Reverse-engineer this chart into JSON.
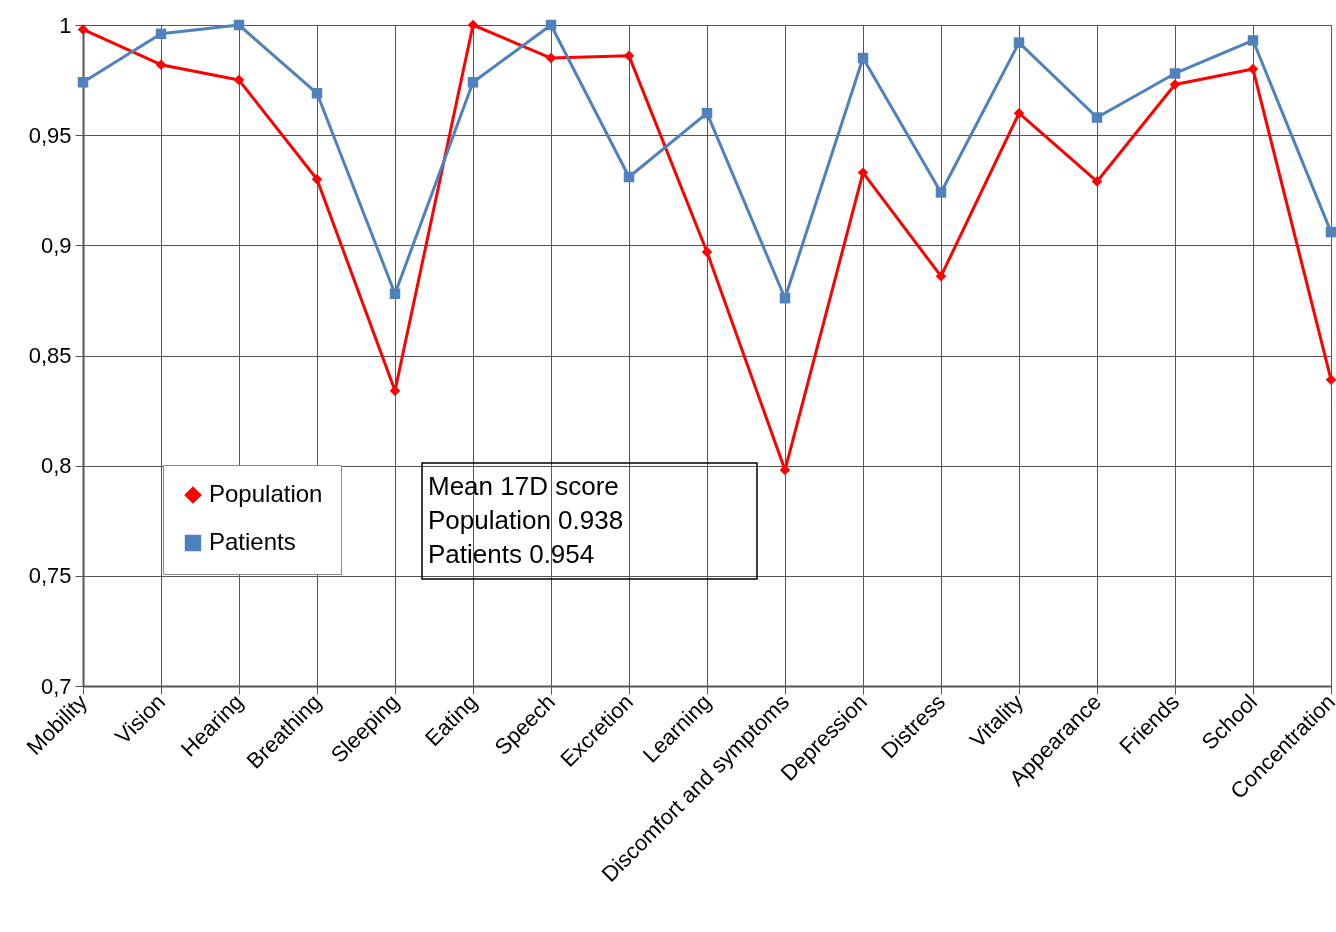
{
  "chart_data": {
    "type": "line",
    "categories": [
      "Mobility",
      "Vision",
      "Hearing",
      "Breathing",
      "Sleeping",
      "Eating",
      "Speech",
      "Excretion",
      "Learning",
      "Discomfort and symptoms",
      "Depression",
      "Distress",
      "Vitality",
      "Appearance",
      "Friends",
      "School",
      "Concentration"
    ],
    "series": [
      {
        "name": "Population",
        "color": "#ff0000",
        "marker": "diamond",
        "values": [
          0.998,
          0.982,
          0.975,
          0.93,
          0.834,
          1.0,
          0.985,
          0.986,
          0.897,
          0.798,
          0.933,
          0.886,
          0.96,
          0.929,
          0.973,
          0.98,
          0.839
        ]
      },
      {
        "name": "Patients",
        "color": "#4f81bd",
        "marker": "square",
        "values": [
          0.974,
          0.996,
          1.0,
          0.969,
          0.878,
          0.974,
          1.0,
          0.931,
          0.96,
          0.876,
          0.985,
          0.924,
          0.992,
          0.958,
          0.978,
          0.993,
          0.906
        ]
      }
    ],
    "ylim": [
      0.7,
      1.0
    ],
    "yticks": [
      {
        "value": 0.7,
        "label": "0,7"
      },
      {
        "value": 0.75,
        "label": "0,75"
      },
      {
        "value": 0.8,
        "label": "0,8"
      },
      {
        "value": 0.85,
        "label": "0,85"
      },
      {
        "value": 0.9,
        "label": "0,9"
      },
      {
        "value": 0.95,
        "label": "0,95"
      },
      1
    ],
    "grid": true,
    "legend": "bottom left",
    "line_style": "solid",
    "annotations": [
      "Mean 17D score",
      "Population  0.938",
      "Patients      0.954"
    ]
  }
}
